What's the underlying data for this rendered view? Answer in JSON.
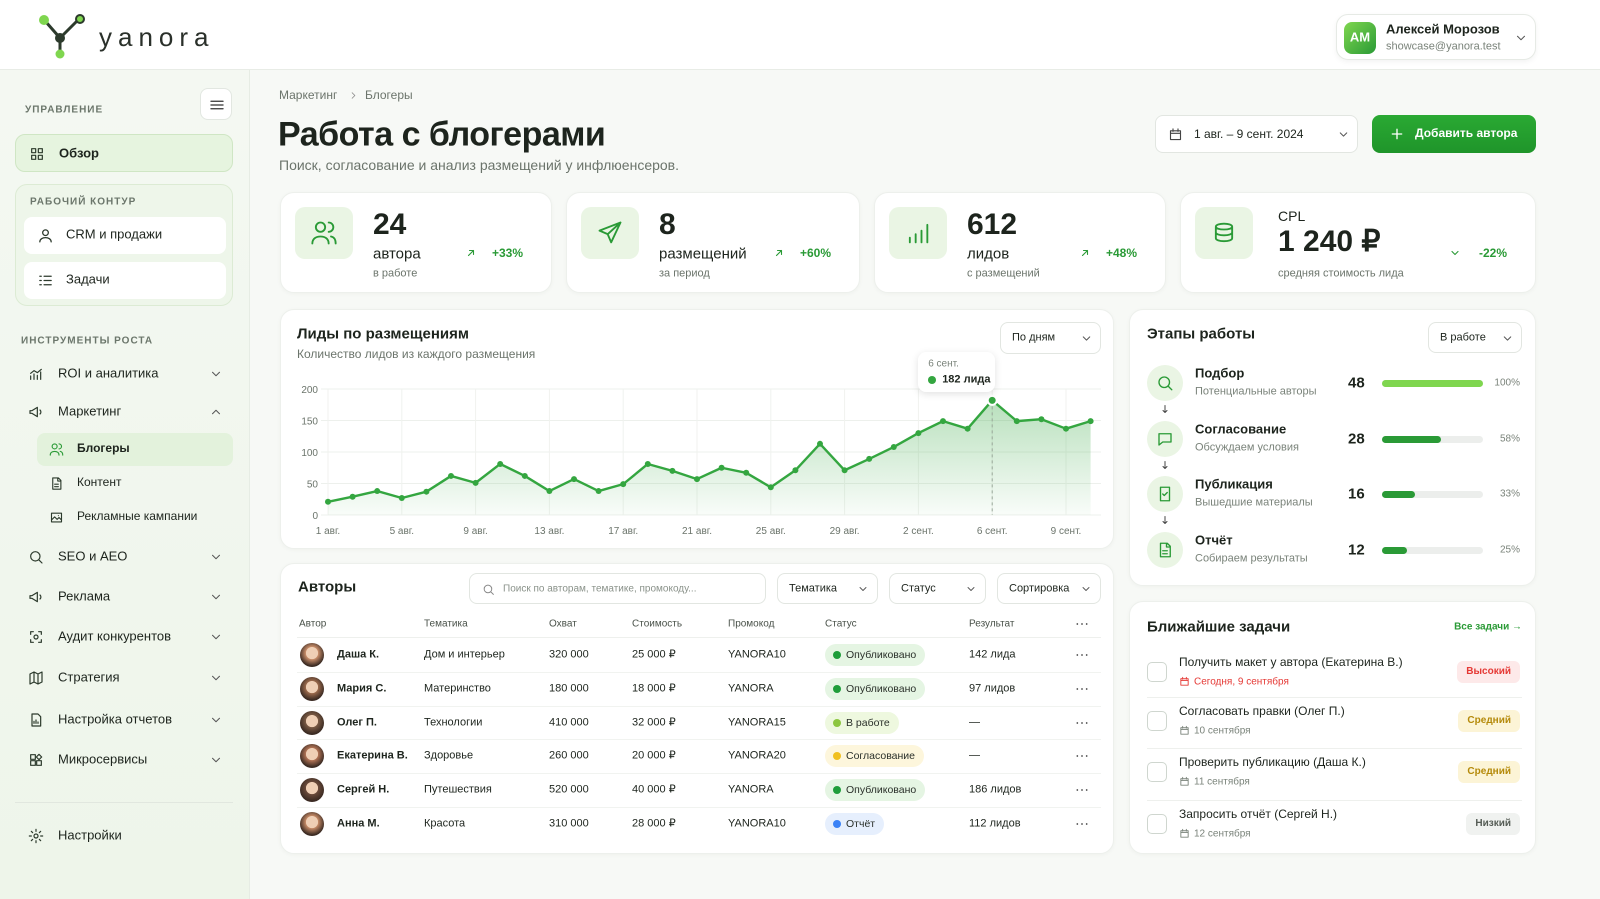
{
  "brand": {
    "name": "yanora"
  },
  "user": {
    "initials": "АМ",
    "name": "Алексей Морозов",
    "email": "showcase@yanora.test"
  },
  "sidebar": {
    "manage_label": "УПРАВЛЕНИЕ",
    "overview": "Обзор",
    "work_label": "РАБОЧИЙ КОНТУР",
    "work_items": [
      "CRM и продажи",
      "Задачи"
    ],
    "growth_label": "ИНСТРУМЕНТЫ РОСТА",
    "growth_items": [
      {
        "label": "ROI и аналитика"
      },
      {
        "label": "Маркетинг",
        "children": [
          "Блогеры",
          "Контент",
          "Рекламные кампании"
        ]
      },
      {
        "label": "SEO и AEO"
      },
      {
        "label": "Реклама"
      },
      {
        "label": "Аудит конкурентов"
      },
      {
        "label": "Стратегия"
      },
      {
        "label": "Настройка отчетов"
      },
      {
        "label": "Микросервисы"
      }
    ],
    "settings": "Настройки"
  },
  "page": {
    "breadcrumb": [
      "Маркетинг",
      "Блогеры"
    ],
    "title": "Работа с блогерами",
    "subtitle": "Поиск, согласование и анализ размещений у инфлюенсеров.",
    "date_range": "1 авг. – 9 сент. 2024",
    "add_button": "Добавить автора"
  },
  "kpis": [
    {
      "value": "24",
      "label": "автора",
      "note": "в работе",
      "delta": "+33%"
    },
    {
      "value": "8",
      "label": "размещений",
      "note": "за период",
      "delta": "+60%"
    },
    {
      "value": "612",
      "label": "лидов",
      "note": "с размещений",
      "delta": "+48%"
    },
    {
      "title": "CPL",
      "value": "1 240 ₽",
      "note": "средняя стоимость лида",
      "delta": "-22%"
    }
  ],
  "chart_data": {
    "type": "line",
    "title": "Лиды по размещениям",
    "subtitle": "Количество лидов из каждого размещения",
    "period": "По дням",
    "categories": [
      "1 авг.",
      null,
      null,
      "5 авг.",
      null,
      null,
      "9 авг.",
      null,
      null,
      "13 авг.",
      null,
      null,
      "17 авг.",
      null,
      null,
      "21 авг.",
      null,
      null,
      "25 авг.",
      null,
      null,
      "29 авг.",
      null,
      null,
      "2 сент.",
      null,
      null,
      "6 сент.",
      null,
      null,
      "9 сент.",
      null
    ],
    "values": [
      21,
      29,
      38,
      27,
      37,
      62,
      51,
      81,
      62,
      38,
      57,
      38,
      49,
      81,
      70,
      57,
      75,
      67,
      44,
      71,
      113,
      71,
      89,
      108,
      130,
      149,
      137,
      182,
      149,
      152,
      137,
      149
    ],
    "ylim": [
      0,
      200
    ],
    "yticks": [
      0,
      50,
      100,
      150,
      200
    ],
    "color": "#34a640",
    "grid": true,
    "tooltip": {
      "date": "6 сент.",
      "value": "182 лида"
    }
  },
  "stages": {
    "title": "Этапы работы",
    "filter": "В работе",
    "items": [
      {
        "name": "Подбор",
        "desc": "Потенциальные авторы",
        "count": "48",
        "percent": 100,
        "percent_label": "100%",
        "color": "#7fd64f"
      },
      {
        "name": "Согласование",
        "desc": "Обсуждаем условия",
        "count": "28",
        "percent": 58,
        "percent_label": "58%",
        "color": "#2a9a36"
      },
      {
        "name": "Публикация",
        "desc": "Вышедшие материалы",
        "count": "16",
        "percent": 33,
        "percent_label": "33%",
        "color": "#2a9a36"
      },
      {
        "name": "Отчёт",
        "desc": "Собираем результаты",
        "count": "12",
        "percent": 25,
        "percent_label": "25%",
        "color": "#2a9a36"
      }
    ]
  },
  "authors": {
    "title": "Авторы",
    "search_placeholder": "Поиск по авторам, тематике, промокоду...",
    "filters": [
      "Тематика",
      "Статус",
      "Сортировка"
    ],
    "columns": [
      "Автор",
      "Тематика",
      "Охват",
      "Стоимость",
      "Промокод",
      "Статус",
      "Результат"
    ],
    "rows": [
      {
        "cells": [
          "Даша К.",
          "Дом и интерьер",
          "320 000",
          "25 000 ₽",
          "YANORA10"
        ],
        "status": {
          "label": "Опубликовано",
          "color": "#1f9d3a",
          "bg": "#e5f5e3"
        },
        "result": "142 лида"
      },
      {
        "cells": [
          "Мария С.",
          "Материнство",
          "180 000",
          "18 000 ₽",
          "YANORA"
        ],
        "status": {
          "label": "Опубликовано",
          "color": "#1f9d3a",
          "bg": "#e5f5e3"
        },
        "result": "97 лидов"
      },
      {
        "cells": [
          "Олег П.",
          "Технологии",
          "410 000",
          "32 000 ₽",
          "YANORA15"
        ],
        "status": {
          "label": "В работе",
          "color": "#8cc63f",
          "bg": "#eef8df"
        },
        "result": "—"
      },
      {
        "cells": [
          "Екатерина В.",
          "Здоровье",
          "260 000",
          "20 000 ₽",
          "YANORA20"
        ],
        "status": {
          "label": "Согласование",
          "color": "#f0c020",
          "bg": "#fdf6dc"
        },
        "result": "—"
      },
      {
        "cells": [
          "Сергей Н.",
          "Путешествия",
          "520 000",
          "40 000 ₽",
          "YANORA"
        ],
        "status": {
          "label": "Опубликовано",
          "color": "#1f9d3a",
          "bg": "#e5f5e3"
        },
        "result": "186 лидов"
      },
      {
        "cells": [
          "Анна М.",
          "Красота",
          "310 000",
          "28 000 ₽",
          "YANORA10"
        ],
        "status": {
          "label": "Отчёт",
          "color": "#3b82f6",
          "bg": "#e6effd"
        },
        "result": "112 лидов"
      }
    ]
  },
  "tasks": {
    "title": "Ближайшие задачи",
    "all_link": "Все задачи →",
    "items": [
      {
        "title": "Получить макет у автора (Екатерина В.)",
        "date": "Сегодня, 9 сентября",
        "date_color": "#e53935",
        "priority": "Высокий",
        "color": "#e53935",
        "bg": "#fde9e9"
      },
      {
        "title": "Согласовать правки (Олег П.)",
        "date": "10 сентября",
        "date_color": "#7a837a",
        "priority": "Средний",
        "color": "#b58a0a",
        "bg": "#fcf4d6"
      },
      {
        "title": "Проверить публикацию (Даша К.)",
        "date": "11 сентября",
        "date_color": "#7a837a",
        "priority": "Средний",
        "color": "#b58a0a",
        "bg": "#fcf4d6"
      },
      {
        "title": "Запросить отчёт (Сергей Н.)",
        "date": "12 сентября",
        "date_color": "#7a837a",
        "priority": "Низкий",
        "color": "#555c55",
        "bg": "#f0f2f0"
      }
    ]
  }
}
